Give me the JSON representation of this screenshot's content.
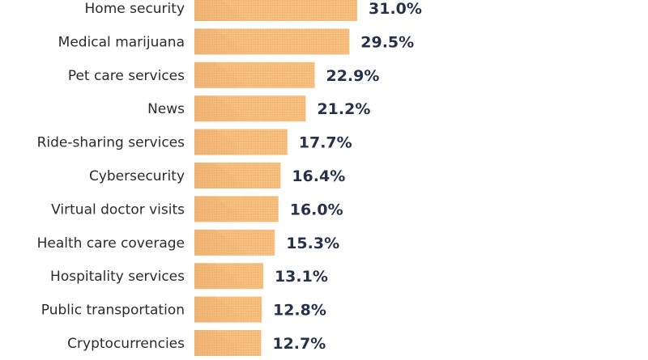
{
  "chart_data": {
    "type": "bar",
    "orientation": "horizontal",
    "title": "",
    "xlabel": "",
    "ylabel": "",
    "xlim": [
      0,
      31
    ],
    "grid": false,
    "value_suffix": "%",
    "categories": [
      "Home security",
      "Medical marijuana",
      "Pet care services",
      "News",
      "Ride-sharing services",
      "Cybersecurity",
      "Virtual doctor visits",
      "Health care coverage",
      "Hospitality services",
      "Public transportation",
      "Cryptocurrencies"
    ],
    "values": [
      31.0,
      29.5,
      22.9,
      21.2,
      17.7,
      16.4,
      16.0,
      15.3,
      13.1,
      12.8,
      12.7
    ],
    "value_labels": [
      "31.0%",
      "29.5%",
      "22.9%",
      "21.2%",
      "17.7%",
      "16.4%",
      "16.0%",
      "15.3%",
      "13.1%",
      "12.8%",
      "12.7%"
    ],
    "colors": {
      "bar_fill": "#f7c07f",
      "bar_shade": "#e4a865",
      "dot_pattern": "#e8a866",
      "category_text": "#2b2b2b",
      "value_text": "#26324a"
    }
  }
}
